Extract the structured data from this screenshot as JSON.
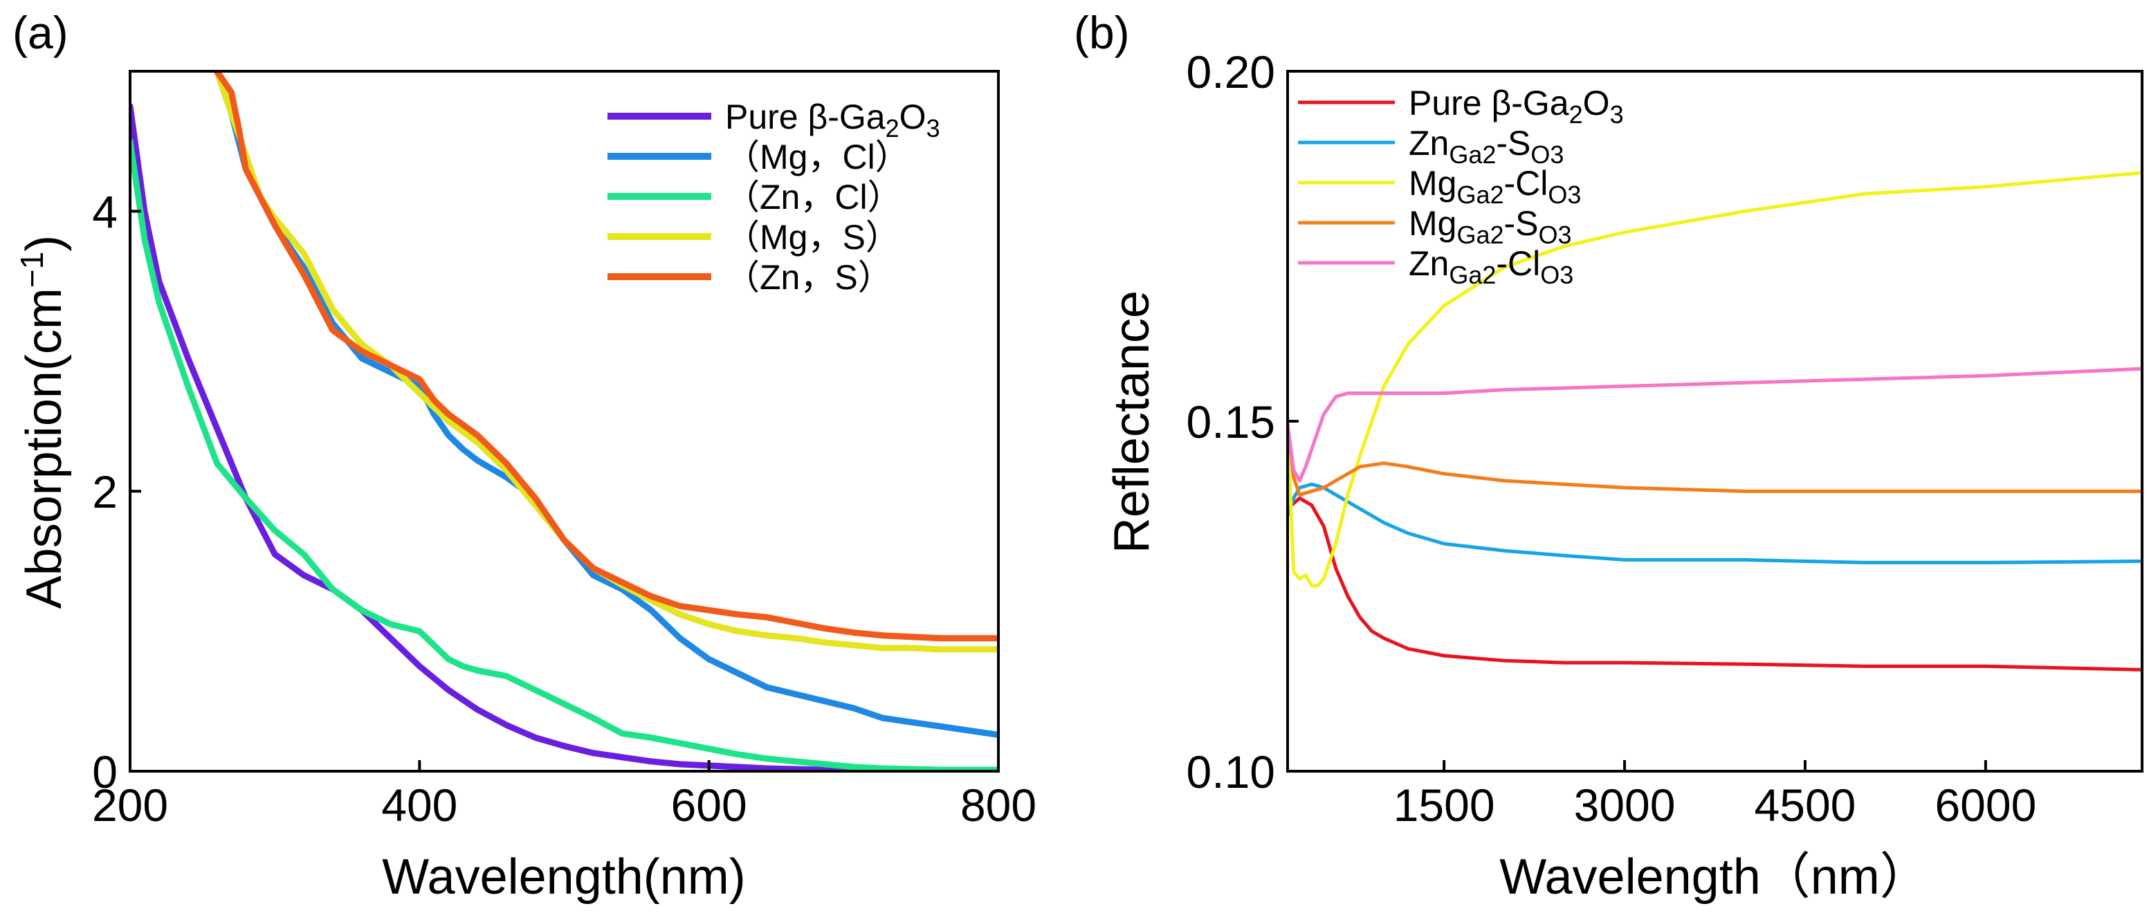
{
  "chart_data": [
    {
      "type": "line",
      "panel_label": "(a)",
      "title": "",
      "xlabel": "Wavelength(nm)",
      "ylabel": "Absorption(cm",
      "ylabel_sup": "−1",
      "ylabel_close": ")",
      "xlim": [
        200,
        800
      ],
      "ylim": [
        0,
        5
      ],
      "xticks": [
        200,
        400,
        600,
        800
      ],
      "xtick_labels": [
        "200",
        "400",
        "600",
        "800"
      ],
      "yticks": [
        0,
        2,
        4
      ],
      "ytick_labels": [
        "0",
        "2",
        "4"
      ],
      "grid": false,
      "legend_position": "top-right",
      "series": [
        {
          "name": "Pure β-Ga2O3",
          "legend_parts": [
            "Pure β-Ga",
            "2",
            "O",
            "3"
          ],
          "color": "#6a1fe0",
          "x": [
            200,
            210,
            220,
            240,
            260,
            280,
            300,
            320,
            340,
            360,
            380,
            400,
            420,
            440,
            460,
            480,
            500,
            520,
            540,
            560,
            580,
            600,
            620,
            640,
            660,
            680,
            700,
            720,
            740,
            760,
            780,
            800
          ],
          "y": [
            4.75,
            4.0,
            3.5,
            2.95,
            2.45,
            1.95,
            1.55,
            1.4,
            1.3,
            1.15,
            0.95,
            0.75,
            0.58,
            0.44,
            0.33,
            0.24,
            0.18,
            0.13,
            0.1,
            0.07,
            0.05,
            0.04,
            0.03,
            0.02,
            0.015,
            0.01,
            0.01,
            0.005,
            0.005,
            0.005,
            0.0,
            0.0
          ]
        },
        {
          "name": "（Mg，Cl）",
          "legend_parts": [
            "（Mg，Cl）"
          ],
          "color": "#1e88e5",
          "x": [
            260,
            270,
            280,
            290,
            300,
            320,
            340,
            360,
            380,
            400,
            410,
            420,
            430,
            440,
            460,
            480,
            500,
            520,
            540,
            560,
            580,
            600,
            620,
            640,
            660,
            680,
            700,
            720,
            740,
            760,
            780,
            800
          ],
          "y": [
            5.0,
            4.7,
            4.3,
            4.1,
            3.9,
            3.6,
            3.2,
            2.95,
            2.85,
            2.75,
            2.55,
            2.4,
            2.3,
            2.22,
            2.1,
            1.95,
            1.65,
            1.4,
            1.3,
            1.15,
            0.95,
            0.8,
            0.7,
            0.6,
            0.55,
            0.5,
            0.45,
            0.38,
            0.35,
            0.32,
            0.29,
            0.26
          ]
        },
        {
          "name": "（Zn，Cl）",
          "legend_parts": [
            "（Zn，Cl）"
          ],
          "color": "#1ee38a",
          "x": [
            200,
            210,
            220,
            240,
            260,
            280,
            300,
            320,
            340,
            360,
            380,
            400,
            410,
            420,
            430,
            440,
            460,
            480,
            500,
            520,
            540,
            560,
            580,
            600,
            620,
            640,
            660,
            680,
            700,
            720,
            740,
            760,
            780,
            800
          ],
          "y": [
            4.5,
            3.8,
            3.35,
            2.75,
            2.2,
            1.95,
            1.72,
            1.55,
            1.3,
            1.15,
            1.05,
            1.0,
            0.9,
            0.8,
            0.75,
            0.72,
            0.68,
            0.58,
            0.48,
            0.38,
            0.27,
            0.24,
            0.2,
            0.16,
            0.12,
            0.09,
            0.07,
            0.05,
            0.03,
            0.02,
            0.015,
            0.01,
            0.01,
            0.01
          ]
        },
        {
          "name": "（Mg，S）",
          "legend_parts": [
            "（Mg，S）"
          ],
          "color": "#e4e420",
          "x": [
            260,
            270,
            280,
            290,
            300,
            320,
            340,
            360,
            380,
            400,
            420,
            440,
            460,
            480,
            500,
            520,
            540,
            560,
            580,
            600,
            620,
            640,
            660,
            680,
            700,
            720,
            740,
            760,
            780,
            800
          ],
          "y": [
            5.0,
            4.7,
            4.4,
            4.1,
            3.95,
            3.7,
            3.3,
            3.05,
            2.9,
            2.7,
            2.5,
            2.35,
            2.15,
            1.9,
            1.65,
            1.45,
            1.33,
            1.22,
            1.12,
            1.05,
            1.0,
            0.97,
            0.95,
            0.92,
            0.9,
            0.88,
            0.88,
            0.87,
            0.87,
            0.87
          ]
        },
        {
          "name": "（Zn，S）",
          "legend_parts": [
            "（Zn，S）"
          ],
          "color": "#f05a1a",
          "x": [
            260,
            270,
            275,
            280,
            290,
            300,
            320,
            340,
            360,
            380,
            390,
            400,
            410,
            420,
            440,
            460,
            480,
            500,
            520,
            540,
            560,
            580,
            600,
            620,
            640,
            660,
            680,
            700,
            720,
            740,
            760,
            780,
            800
          ],
          "y": [
            5.0,
            4.85,
            4.6,
            4.3,
            4.1,
            3.9,
            3.55,
            3.15,
            3.0,
            2.9,
            2.85,
            2.8,
            2.65,
            2.55,
            2.4,
            2.2,
            1.95,
            1.65,
            1.45,
            1.35,
            1.25,
            1.18,
            1.15,
            1.12,
            1.1,
            1.06,
            1.02,
            0.99,
            0.97,
            0.96,
            0.95,
            0.95,
            0.95
          ]
        }
      ]
    },
    {
      "type": "line",
      "panel_label": "(b)",
      "title": "",
      "xlabel": "Wavelength（nm）",
      "ylabel": "Reflectance",
      "xlim": [
        200,
        7300
      ],
      "ylim": [
        0.1,
        0.2
      ],
      "xticks": [
        1500,
        3000,
        4500,
        6000
      ],
      "xtick_labels": [
        "1500",
        "3000",
        "4500",
        "6000"
      ],
      "yticks": [
        0.1,
        0.15,
        0.2
      ],
      "ytick_labels": [
        "0.10",
        "0.15",
        "0.20"
      ],
      "grid": false,
      "legend_position": "top-left",
      "series": [
        {
          "name": "Pure β-Ga2O3",
          "legend_parts": [
            "Pure β-Ga",
            "2",
            "O",
            "3"
          ],
          "color": "#e8131c",
          "x": [
            200,
            300,
            400,
            500,
            600,
            700,
            800,
            900,
            1000,
            1200,
            1500,
            2000,
            2500,
            3000,
            4000,
            5000,
            6000,
            7300
          ],
          "y": [
            0.1375,
            0.139,
            0.138,
            0.135,
            0.129,
            0.125,
            0.122,
            0.12,
            0.119,
            0.1175,
            0.1165,
            0.1158,
            0.1155,
            0.1155,
            0.1153,
            0.115,
            0.115,
            0.1145
          ]
        },
        {
          "name": "ZnGa2-SO3",
          "legend_parts": [
            "Zn",
            "Ga2",
            "-S",
            "O3"
          ],
          "color": "#15a4e8",
          "x": [
            200,
            250,
            300,
            400,
            500,
            600,
            800,
            1000,
            1200,
            1500,
            2000,
            2500,
            3000,
            4000,
            5000,
            6000,
            7300
          ],
          "y": [
            0.1365,
            0.139,
            0.1405,
            0.141,
            0.1405,
            0.1395,
            0.1375,
            0.1355,
            0.134,
            0.1325,
            0.1315,
            0.1308,
            0.1302,
            0.1302,
            0.1298,
            0.1298,
            0.13
          ]
        },
        {
          "name": "MgGa2-ClO3",
          "legend_parts": [
            "Mg",
            "Ga2",
            "-Cl",
            "O3"
          ],
          "color": "#f2f21c",
          "x": [
            200,
            250,
            300,
            350,
            400,
            450,
            500,
            600,
            700,
            800,
            900,
            1000,
            1200,
            1500,
            2000,
            2500,
            3000,
            3500,
            4000,
            5000,
            6000,
            7300
          ],
          "y": [
            0.1495,
            0.1285,
            0.1275,
            0.128,
            0.1265,
            0.1265,
            0.1275,
            0.1325,
            0.1395,
            0.145,
            0.15,
            0.155,
            0.161,
            0.1665,
            0.172,
            0.175,
            0.177,
            0.1785,
            0.18,
            0.1825,
            0.1835,
            0.1855
          ]
        },
        {
          "name": "MgGa2-SO3",
          "legend_parts": [
            "Mg",
            "Ga2",
            "-S",
            "O3"
          ],
          "color": "#f47d1a",
          "x": [
            200,
            250,
            300,
            400,
            500,
            600,
            800,
            1000,
            1200,
            1500,
            2000,
            2500,
            3000,
            4000,
            5000,
            6000,
            7300
          ],
          "y": [
            0.1495,
            0.142,
            0.1395,
            0.14,
            0.1405,
            0.1415,
            0.1435,
            0.144,
            0.1435,
            0.1425,
            0.1415,
            0.141,
            0.1405,
            0.14,
            0.14,
            0.14,
            0.14
          ]
        },
        {
          "name": "ZnGa2-ClO3",
          "legend_parts": [
            "Zn",
            "Ga2",
            "-Cl",
            "O3"
          ],
          "color": "#f575c8",
          "x": [
            200,
            250,
            300,
            350,
            400,
            500,
            600,
            700,
            800,
            1000,
            1500,
            2000,
            3000,
            4000,
            5000,
            6000,
            7300
          ],
          "y": [
            0.1495,
            0.143,
            0.1415,
            0.1435,
            0.146,
            0.151,
            0.1535,
            0.154,
            0.154,
            0.154,
            0.154,
            0.1545,
            0.155,
            0.1555,
            0.156,
            0.1565,
            0.1575
          ]
        }
      ]
    }
  ]
}
